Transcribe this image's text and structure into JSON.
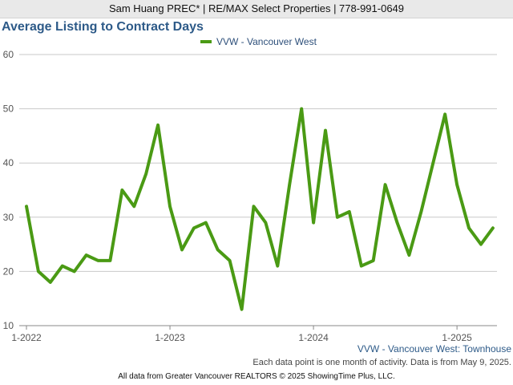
{
  "header": {
    "banner": "Sam Huang PREC* | RE/MAX Select Properties | 778-991-0649"
  },
  "chart_data": {
    "type": "line",
    "title": "Average Listing to Contract Days",
    "xlabel": "",
    "ylabel": "",
    "ylim": [
      10,
      60
    ],
    "y_ticks": [
      10,
      20,
      30,
      40,
      50,
      60
    ],
    "x_tick_labels": [
      "1-2022",
      "1-2023",
      "1-2024",
      "1-2025"
    ],
    "grid": "horizontal",
    "legend_position": "top-center",
    "series": [
      {
        "name": "VVW - Vancouver West",
        "color": "#4a9a14",
        "x": [
          "2022-01",
          "2022-02",
          "2022-03",
          "2022-04",
          "2022-05",
          "2022-06",
          "2022-07",
          "2022-08",
          "2022-09",
          "2022-10",
          "2022-11",
          "2022-12",
          "2023-01",
          "2023-02",
          "2023-03",
          "2023-04",
          "2023-05",
          "2023-06",
          "2023-07",
          "2023-08",
          "2023-09",
          "2023-10",
          "2023-11",
          "2023-12",
          "2024-01",
          "2024-02",
          "2024-03",
          "2024-04",
          "2024-05",
          "2024-06",
          "2024-07",
          "2024-08",
          "2024-09",
          "2024-10",
          "2024-11",
          "2024-12",
          "2025-01",
          "2025-02",
          "2025-03",
          "2025-04"
        ],
        "values": [
          32,
          20,
          18,
          21,
          20,
          23,
          22,
          22,
          35,
          32,
          38,
          47,
          32,
          24,
          28,
          29,
          24,
          22,
          13,
          32,
          29,
          21,
          36,
          50,
          29,
          46,
          30,
          31,
          21,
          22,
          36,
          29,
          23,
          31,
          40,
          49,
          36,
          28,
          25,
          28
        ]
      }
    ],
    "caption": "VVW - Vancouver West: Townhouse"
  },
  "notes": {
    "data_note": "Each data point is one month of activity. Data is from May 9, 2025.",
    "footer": "All data from Greater Vancouver REALTORS © 2025 ShowingTime Plus, LLC."
  }
}
